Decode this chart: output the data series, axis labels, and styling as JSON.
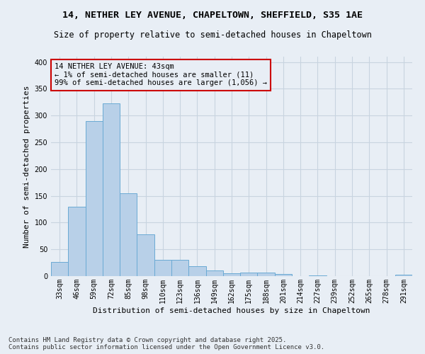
{
  "title_line1": "14, NETHER LEY AVENUE, CHAPELTOWN, SHEFFIELD, S35 1AE",
  "title_line2": "Size of property relative to semi-detached houses in Chapeltown",
  "xlabel": "Distribution of semi-detached houses by size in Chapeltown",
  "ylabel": "Number of semi-detached properties",
  "categories": [
    "33sqm",
    "46sqm",
    "59sqm",
    "72sqm",
    "85sqm",
    "98sqm",
    "110sqm",
    "123sqm",
    "136sqm",
    "149sqm",
    "162sqm",
    "175sqm",
    "188sqm",
    "201sqm",
    "214sqm",
    "227sqm",
    "239sqm",
    "252sqm",
    "265sqm",
    "278sqm",
    "291sqm"
  ],
  "values": [
    27,
    130,
    290,
    323,
    155,
    78,
    30,
    30,
    18,
    11,
    5,
    6,
    6,
    4,
    0,
    1,
    0,
    0,
    0,
    0,
    2
  ],
  "bar_color": "#b8d0e8",
  "bar_edge_color": "#6aaad4",
  "bg_color": "#e8eef5",
  "annotation_text": "14 NETHER LEY AVENUE: 43sqm\n← 1% of semi-detached houses are smaller (11)\n99% of semi-detached houses are larger (1,056) →",
  "annotation_box_edge": "#cc0000",
  "footer_line1": "Contains HM Land Registry data © Crown copyright and database right 2025.",
  "footer_line2": "Contains public sector information licensed under the Open Government Licence v3.0.",
  "ylim": [
    0,
    410
  ],
  "yticks": [
    0,
    50,
    100,
    150,
    200,
    250,
    300,
    350,
    400
  ],
  "grid_color": "#c8d4e0",
  "title_fontsize": 9.5,
  "subtitle_fontsize": 8.5,
  "axis_label_fontsize": 8,
  "tick_fontsize": 7,
  "footer_fontsize": 6.5,
  "annotation_fontsize": 7.5
}
